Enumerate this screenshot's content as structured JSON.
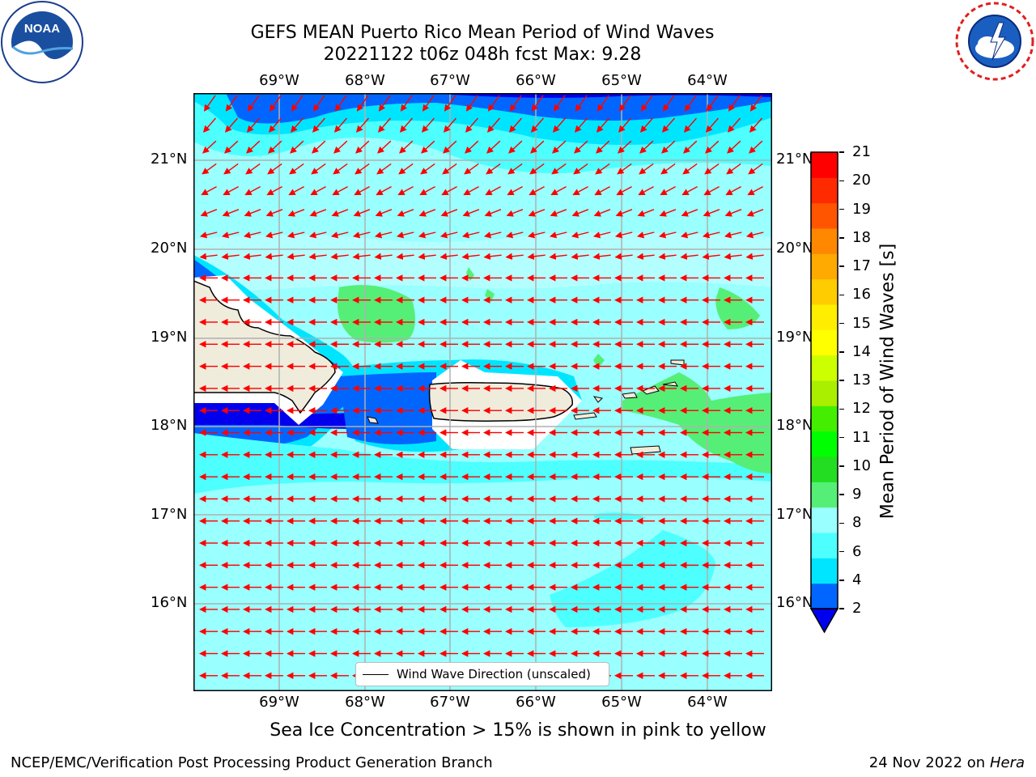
{
  "title": {
    "line1": "GEFS MEAN Puerto Rico Mean Period of Wind Waves",
    "line2": "20221122 t06z 048h fcst   Max: 9.28"
  },
  "logos": {
    "left": "NOAA",
    "right": "NATIONAL WEATHER SERVICE"
  },
  "map": {
    "lon_labels": [
      "69°W",
      "68°W",
      "67°W",
      "66°W",
      "65°W",
      "64°W"
    ],
    "lat_labels": [
      "21°N",
      "20°N",
      "19°N",
      "18°N",
      "17°N",
      "16°N"
    ],
    "wind_direction": "east to west",
    "legend_label": "Wind Wave Direction (unscaled)",
    "colors": {
      "land": "#efecdc",
      "arrow": "#ff0000",
      "grid": "#b0b0b0"
    }
  },
  "colorbar": {
    "label": "Mean Period of Wind Waves [s]",
    "ticks": [
      "2",
      "4",
      "6",
      "8",
      "9",
      "10",
      "11",
      "12",
      "13",
      "14",
      "15",
      "16",
      "17",
      "18",
      "19",
      "20",
      "21"
    ],
    "colors": [
      "#0066ff",
      "#00e5ff",
      "#4dffff",
      "#99ffff",
      "#55ef77",
      "#22dd22",
      "#00ff00",
      "#44ee00",
      "#aaee00",
      "#ccff00",
      "#ffff00",
      "#ffee00",
      "#ffcc00",
      "#ffaa00",
      "#ff8800",
      "#ff5500",
      "#ff2a00",
      "#ff0000"
    ],
    "under_color": "#0000ee"
  },
  "note": "Sea Ice Concentration > 15% is shown in pink to yellow",
  "footer": {
    "left": "NCEP/EMC/Verification Post Processing Product Generation Branch",
    "right_date": "24 Nov 2022 on",
    "right_host": "Hera"
  }
}
